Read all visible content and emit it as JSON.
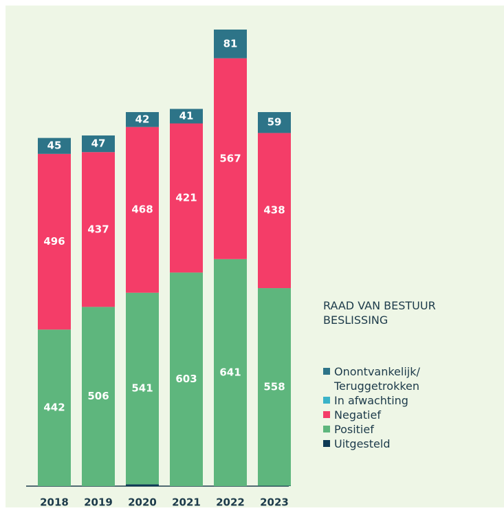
{
  "chart_data": {
    "type": "stacked_bar",
    "categories": [
      "2018",
      "2019",
      "2020",
      "2021",
      "2022",
      "2023"
    ],
    "legend_title": "RAAD VAN BESTUUR\nBESLISSING",
    "series": [
      {
        "name": "Onontvankelijk/\nTeruggetrokken",
        "color": "#2d7488",
        "values": [
          45,
          47,
          42,
          41,
          81,
          59
        ]
      },
      {
        "name": "In afwachting",
        "color": "#3ab3c8",
        "values": [
          null,
          null,
          null,
          null,
          null,
          null
        ]
      },
      {
        "name": "Negatief",
        "color": "#f43d68",
        "values": [
          496,
          437,
          468,
          421,
          567,
          438
        ]
      },
      {
        "name": "Positief",
        "color": "#5eb67d",
        "values": [
          442,
          506,
          541,
          603,
          641,
          558
        ]
      },
      {
        "name": "Uitgesteld",
        "color": "#0e3a55",
        "values": [
          null,
          null,
          5,
          null,
          null,
          1
        ]
      }
    ]
  }
}
